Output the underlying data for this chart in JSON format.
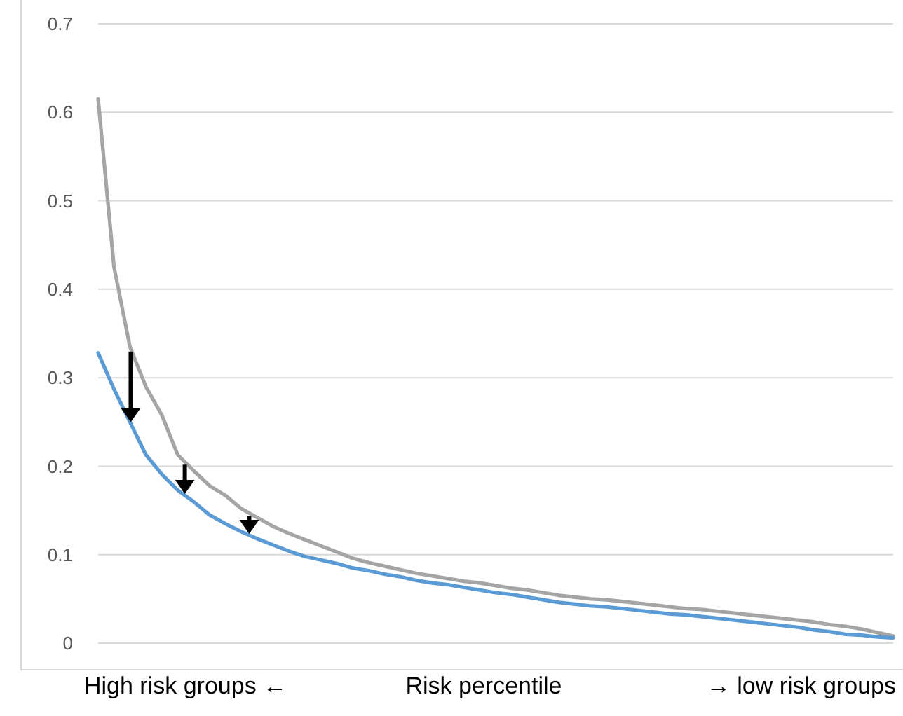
{
  "chart_data": {
    "type": "line",
    "xlabel": "Risk percentile",
    "annotations": [
      "High risk groups ←",
      "→ low risk groups"
    ],
    "categories": [
      null,
      null,
      null,
      null,
      null,
      null,
      null,
      null,
      null,
      null,
      null,
      null,
      null,
      null,
      null,
      null,
      null,
      null,
      null,
      null,
      null,
      null,
      null,
      null,
      null,
      null,
      null,
      null,
      null,
      null,
      null,
      null,
      null,
      null,
      null,
      null,
      null,
      null,
      null,
      null,
      null,
      null,
      null,
      null,
      null,
      null,
      null,
      null,
      null,
      null,
      null
    ],
    "ylim": [
      0,
      0.7
    ],
    "yticks": [
      0,
      0.1,
      0.2,
      0.3,
      0.4,
      0.5,
      0.6,
      0.7
    ],
    "grid": "y",
    "tick_labels": "y",
    "line_style": "solid",
    "series": [
      {
        "color": "#a5a5a5",
        "values": [
          0.615,
          0.425,
          0.335,
          0.29,
          0.258,
          0.213,
          0.195,
          0.178,
          0.167,
          0.152,
          0.142,
          0.132,
          0.124,
          0.117,
          0.11,
          0.103,
          0.096,
          0.091,
          0.087,
          0.083,
          0.079,
          0.076,
          0.073,
          0.07,
          0.068,
          0.065,
          0.062,
          0.06,
          0.057,
          0.054,
          0.052,
          0.05,
          0.049,
          0.047,
          0.045,
          0.043,
          0.041,
          0.039,
          0.038,
          0.036,
          0.034,
          0.032,
          0.03,
          0.028,
          0.026,
          0.024,
          0.021,
          0.019,
          0.016,
          0.012,
          0.008
        ]
      },
      {
        "color": "#5b9bd5",
        "values": [
          0.328,
          0.287,
          0.25,
          0.213,
          0.191,
          0.173,
          0.16,
          0.145,
          0.135,
          0.126,
          0.118,
          0.111,
          0.104,
          0.098,
          0.094,
          0.09,
          0.085,
          0.082,
          0.078,
          0.075,
          0.071,
          0.068,
          0.066,
          0.063,
          0.06,
          0.057,
          0.055,
          0.052,
          0.049,
          0.046,
          0.044,
          0.042,
          0.041,
          0.039,
          0.037,
          0.035,
          0.033,
          0.032,
          0.03,
          0.028,
          0.026,
          0.024,
          0.022,
          0.02,
          0.018,
          0.015,
          0.013,
          0.01,
          0.009,
          0.007,
          0.006
        ]
      }
    ]
  }
}
